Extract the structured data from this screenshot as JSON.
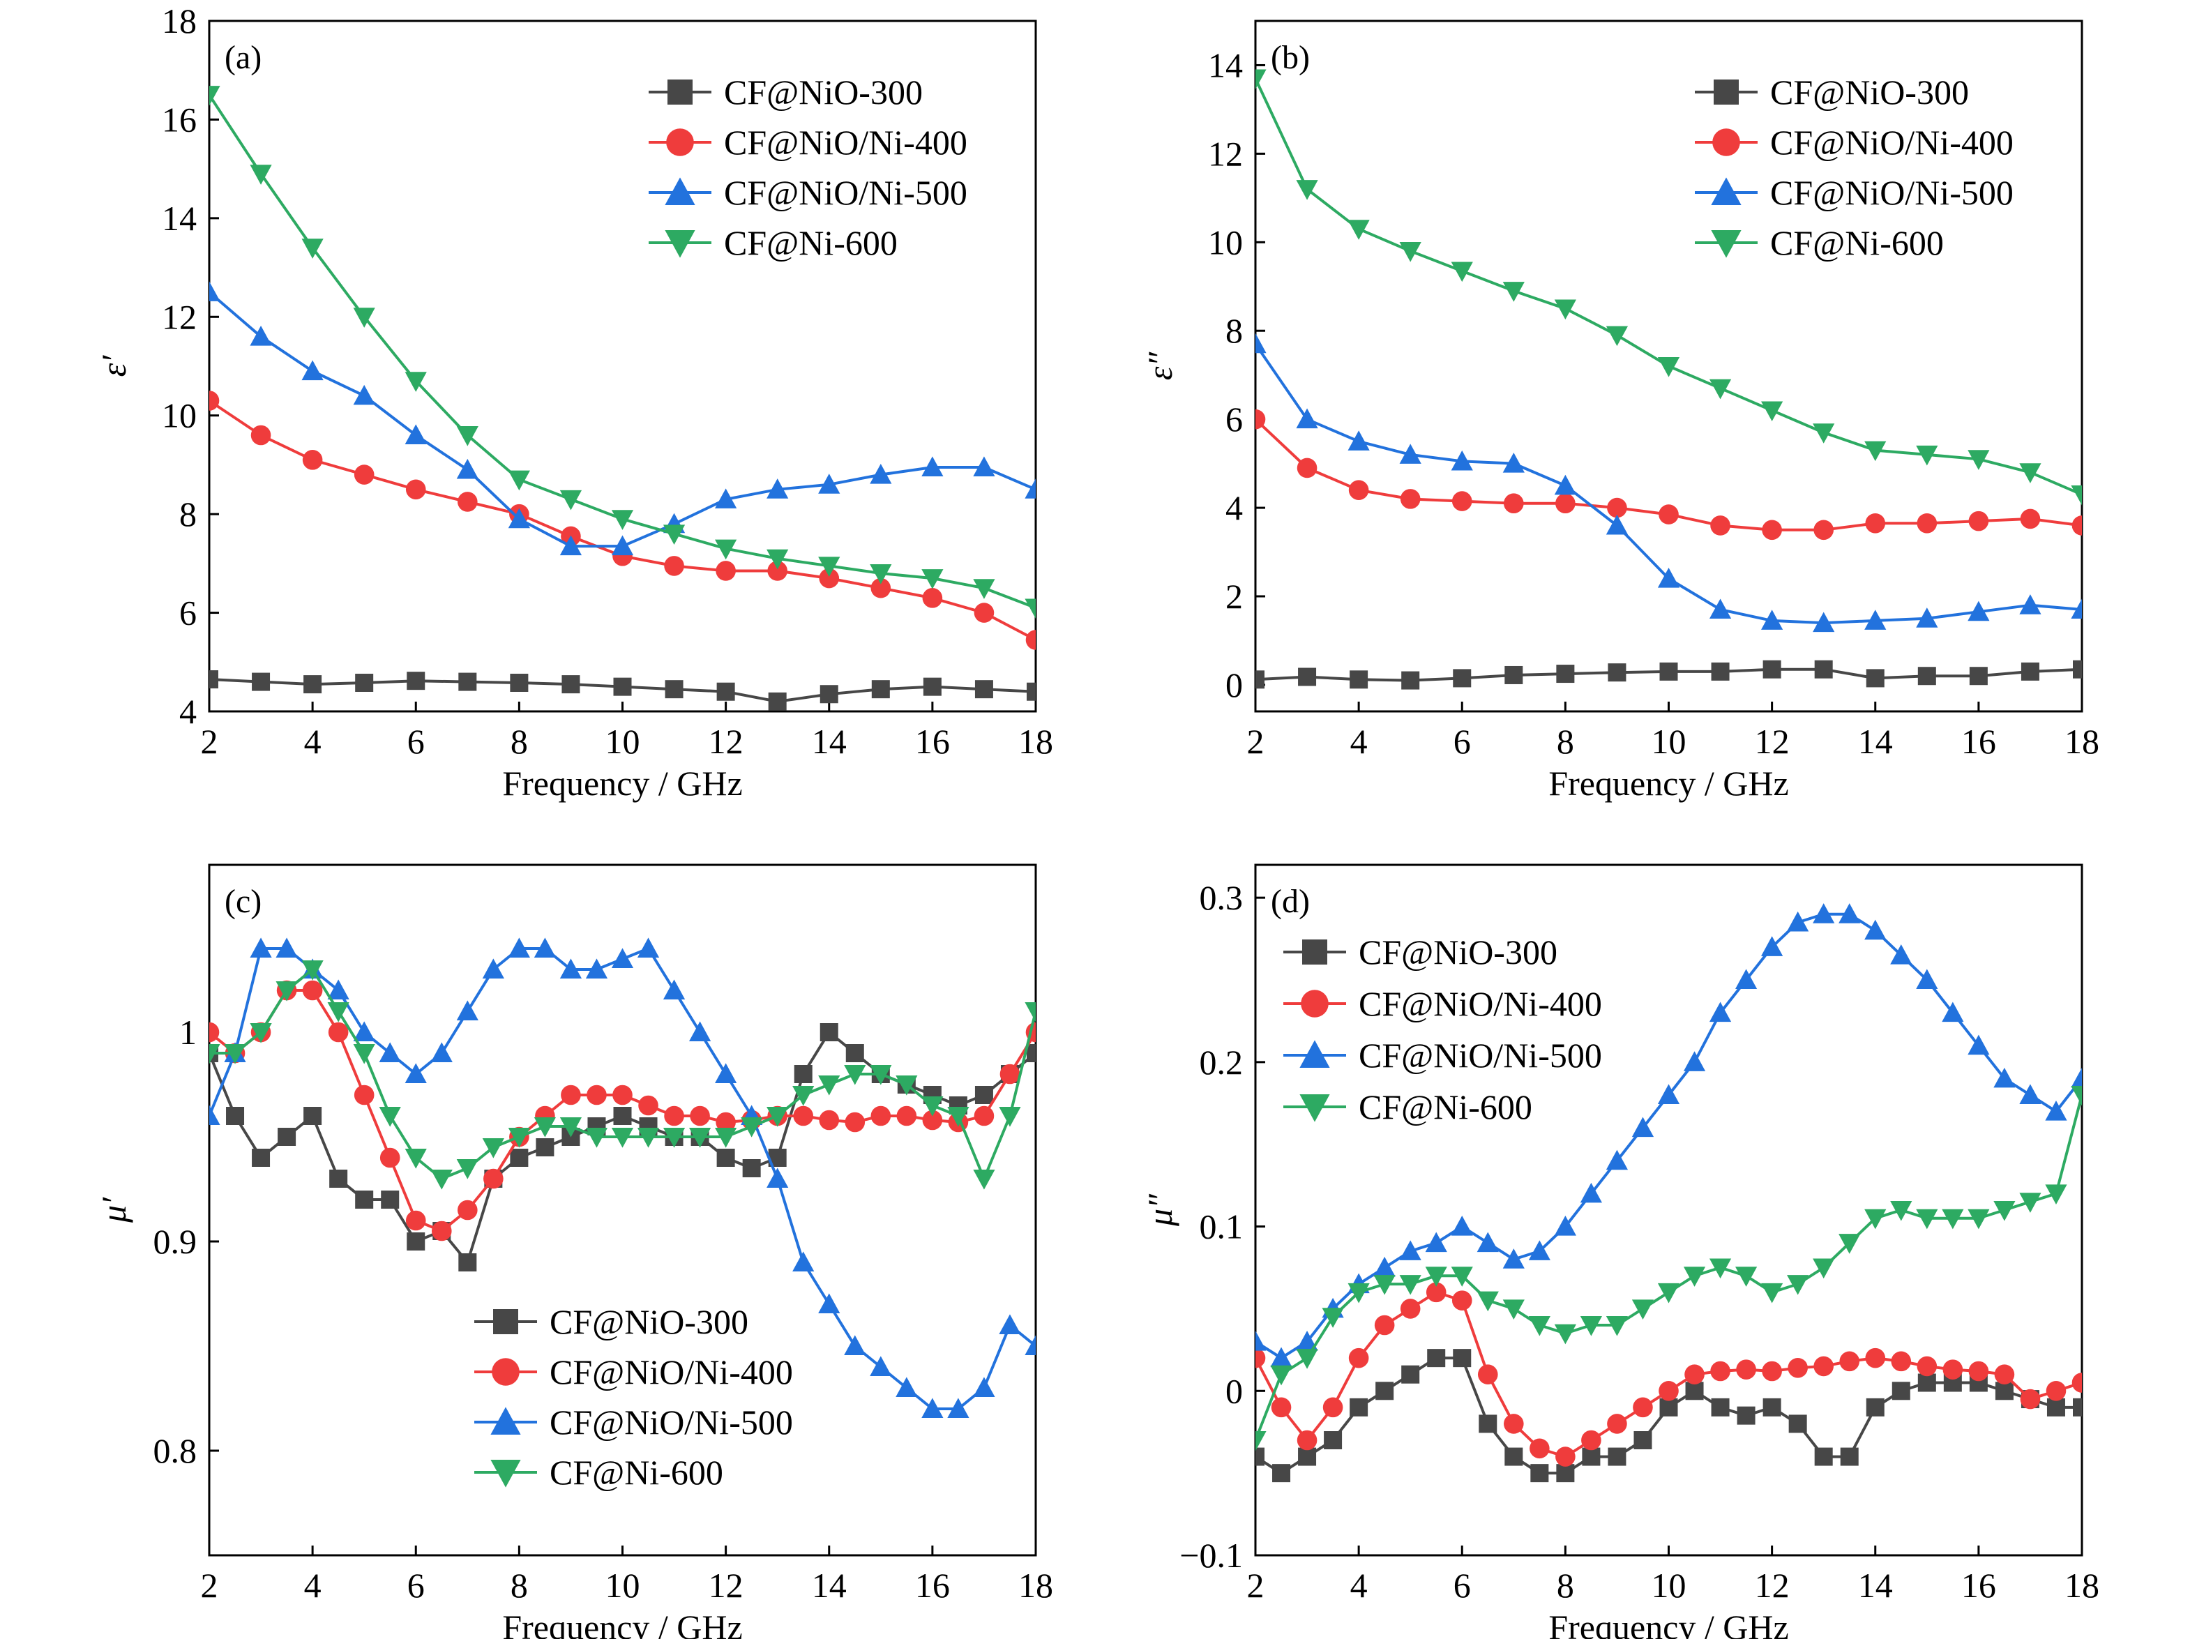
{
  "colors": {
    "CF@NiO-300": "#474747",
    "CF@NiO/Ni-400": "#ef3c3c",
    "CF@NiO/Ni-500": "#2272dd",
    "CF@Ni-600": "#2daa62"
  },
  "chart_data": [
    {
      "type": "line",
      "panel": "(a)",
      "xlabel": "Frequency / GHz",
      "ylabel": "ε′",
      "xlim": [
        2,
        18
      ],
      "ylim": [
        4,
        18
      ],
      "xticks": [
        2,
        4,
        6,
        8,
        10,
        12,
        14,
        16,
        18
      ],
      "yticks": [
        4,
        6,
        8,
        10,
        12,
        14,
        16,
        18
      ],
      "legend_position": "top-right",
      "x": [
        2,
        3,
        4,
        5,
        6,
        7,
        8,
        9,
        10,
        11,
        12,
        13,
        14,
        15,
        16,
        17,
        18
      ],
      "series": [
        {
          "name": "CF@NiO-300",
          "marker": "square",
          "values": [
            4.65,
            4.6,
            4.55,
            4.58,
            4.62,
            4.6,
            4.58,
            4.55,
            4.5,
            4.45,
            4.4,
            4.2,
            4.35,
            4.45,
            4.5,
            4.45,
            4.4
          ]
        },
        {
          "name": "CF@NiO/Ni-400",
          "marker": "circle",
          "values": [
            10.3,
            9.6,
            9.1,
            8.8,
            8.5,
            8.25,
            8.0,
            7.55,
            7.15,
            6.95,
            6.85,
            6.85,
            6.7,
            6.5,
            6.3,
            6.0,
            5.45
          ]
        },
        {
          "name": "CF@NiO/Ni-500",
          "marker": "triangle-up",
          "values": [
            12.5,
            11.6,
            10.9,
            10.4,
            9.6,
            8.9,
            7.9,
            7.35,
            7.35,
            7.8,
            8.3,
            8.5,
            8.6,
            8.8,
            8.95,
            8.95,
            8.5
          ]
        },
        {
          "name": "CF@Ni-600",
          "marker": "triangle-down",
          "values": [
            16.5,
            14.9,
            13.4,
            12.0,
            10.7,
            9.6,
            8.7,
            8.3,
            7.9,
            7.6,
            7.3,
            7.1,
            6.95,
            6.8,
            6.7,
            6.5,
            6.1
          ]
        }
      ]
    },
    {
      "type": "line",
      "panel": "(b)",
      "xlabel": "Frequency / GHz",
      "ylabel": "ε″",
      "xlim": [
        2,
        18
      ],
      "ylim": [
        -0.6,
        15
      ],
      "xticks": [
        2,
        4,
        6,
        8,
        10,
        12,
        14,
        16,
        18
      ],
      "yticks": [
        0,
        2,
        4,
        6,
        8,
        10,
        12,
        14
      ],
      "legend_position": "top-right",
      "x": [
        2,
        3,
        4,
        5,
        6,
        7,
        8,
        9,
        10,
        11,
        12,
        13,
        14,
        15,
        16,
        17,
        18
      ],
      "series": [
        {
          "name": "CF@NiO-300",
          "marker": "square",
          "values": [
            0.12,
            0.18,
            0.12,
            0.1,
            0.15,
            0.22,
            0.25,
            0.28,
            0.3,
            0.3,
            0.35,
            0.35,
            0.15,
            0.2,
            0.2,
            0.3,
            0.35
          ]
        },
        {
          "name": "CF@NiO/Ni-400",
          "marker": "circle",
          "values": [
            6.0,
            4.9,
            4.4,
            4.2,
            4.15,
            4.1,
            4.1,
            4.0,
            3.85,
            3.6,
            3.5,
            3.5,
            3.65,
            3.65,
            3.7,
            3.75,
            3.6
          ]
        },
        {
          "name": "CF@NiO/Ni-500",
          "marker": "triangle-up",
          "values": [
            7.7,
            6.0,
            5.5,
            5.2,
            5.05,
            5.0,
            4.5,
            3.6,
            2.4,
            1.7,
            1.45,
            1.4,
            1.45,
            1.5,
            1.65,
            1.8,
            1.7
          ]
        },
        {
          "name": "CF@Ni-600",
          "marker": "triangle-down",
          "values": [
            13.7,
            11.2,
            10.3,
            9.8,
            9.35,
            8.9,
            8.5,
            7.9,
            7.2,
            6.7,
            6.2,
            5.7,
            5.3,
            5.2,
            5.1,
            4.8,
            4.3
          ]
        }
      ]
    },
    {
      "type": "line",
      "panel": "(c)",
      "xlabel": "Frequency / GHz",
      "ylabel": "μ′",
      "xlim": [
        2,
        18
      ],
      "ylim": [
        0.75,
        1.08
      ],
      "xticks": [
        2,
        4,
        6,
        8,
        10,
        12,
        14,
        16,
        18
      ],
      "yticks": [
        0.8,
        0.9,
        1.0
      ],
      "legend_position": "bottom-center",
      "x": [
        2,
        2.5,
        3,
        3.5,
        4,
        4.5,
        5,
        5.5,
        6,
        6.5,
        7,
        7.5,
        8,
        8.5,
        9,
        9.5,
        10,
        10.5,
        11,
        11.5,
        12,
        12.5,
        13,
        13.5,
        14,
        14.5,
        15,
        15.5,
        16,
        16.5,
        17,
        17.5,
        18
      ],
      "series": [
        {
          "name": "CF@NiO-300",
          "marker": "square",
          "values": [
            0.99,
            0.96,
            0.94,
            0.95,
            0.96,
            0.93,
            0.92,
            0.92,
            0.9,
            0.905,
            0.89,
            0.93,
            0.94,
            0.945,
            0.95,
            0.955,
            0.96,
            0.955,
            0.95,
            0.95,
            0.94,
            0.935,
            0.94,
            0.98,
            1.0,
            0.99,
            0.98,
            0.975,
            0.97,
            0.965,
            0.97,
            0.98,
            0.99
          ]
        },
        {
          "name": "CF@NiO/Ni-400",
          "marker": "circle",
          "values": [
            1.0,
            0.99,
            1.0,
            1.02,
            1.02,
            1.0,
            0.97,
            0.94,
            0.91,
            0.905,
            0.915,
            0.93,
            0.95,
            0.96,
            0.97,
            0.97,
            0.97,
            0.965,
            0.96,
            0.96,
            0.957,
            0.958,
            0.96,
            0.96,
            0.958,
            0.957,
            0.96,
            0.96,
            0.958,
            0.957,
            0.96,
            0.98,
            1.0
          ]
        },
        {
          "name": "CF@NiO/Ni-500",
          "marker": "triangle-up",
          "values": [
            0.96,
            0.99,
            1.04,
            1.04,
            1.03,
            1.02,
            1.0,
            0.99,
            0.98,
            0.99,
            1.01,
            1.03,
            1.04,
            1.04,
            1.03,
            1.03,
            1.035,
            1.04,
            1.02,
            1.0,
            0.98,
            0.96,
            0.93,
            0.89,
            0.87,
            0.85,
            0.84,
            0.83,
            0.82,
            0.82,
            0.83,
            0.86,
            0.85
          ]
        },
        {
          "name": "CF@Ni-600",
          "marker": "triangle-down",
          "values": [
            0.99,
            0.99,
            1.0,
            1.02,
            1.03,
            1.01,
            0.99,
            0.96,
            0.94,
            0.93,
            0.935,
            0.945,
            0.95,
            0.955,
            0.955,
            0.95,
            0.95,
            0.95,
            0.95,
            0.95,
            0.95,
            0.955,
            0.96,
            0.97,
            0.975,
            0.98,
            0.98,
            0.975,
            0.965,
            0.96,
            0.93,
            0.96,
            1.01
          ]
        }
      ]
    },
    {
      "type": "line",
      "panel": "(d)",
      "xlabel": "Frequency / GHz",
      "ylabel": "μ″",
      "xlim": [
        2,
        18
      ],
      "ylim": [
        -0.1,
        0.32
      ],
      "xticks": [
        2,
        4,
        6,
        8,
        10,
        12,
        14,
        16,
        18
      ],
      "yticks": [
        -0.1,
        0.0,
        0.1,
        0.2,
        0.3
      ],
      "ytick_labels": [
        "−0.1",
        "0",
        "0.1",
        "0.2",
        "0.3"
      ],
      "legend_position": "top-left",
      "x": [
        2,
        2.5,
        3,
        3.5,
        4,
        4.5,
        5,
        5.5,
        6,
        6.5,
        7,
        7.5,
        8,
        8.5,
        9,
        9.5,
        10,
        10.5,
        11,
        11.5,
        12,
        12.5,
        13,
        13.5,
        14,
        14.5,
        15,
        15.5,
        16,
        16.5,
        17,
        17.5,
        18
      ],
      "series": [
        {
          "name": "CF@NiO-300",
          "marker": "square",
          "values": [
            -0.04,
            -0.05,
            -0.04,
            -0.03,
            -0.01,
            0.0,
            0.01,
            0.02,
            0.02,
            -0.02,
            -0.04,
            -0.05,
            -0.05,
            -0.04,
            -0.04,
            -0.03,
            -0.01,
            0.0,
            -0.01,
            -0.015,
            -0.01,
            -0.02,
            -0.04,
            -0.04,
            -0.01,
            0.0,
            0.005,
            0.005,
            0.005,
            0.0,
            -0.005,
            -0.01,
            -0.01
          ]
        },
        {
          "name": "CF@NiO/Ni-400",
          "marker": "circle",
          "values": [
            0.02,
            -0.01,
            -0.03,
            -0.01,
            0.02,
            0.04,
            0.05,
            0.06,
            0.055,
            0.01,
            -0.02,
            -0.035,
            -0.04,
            -0.03,
            -0.02,
            -0.01,
            0.0,
            0.01,
            0.012,
            0.013,
            0.012,
            0.014,
            0.015,
            0.018,
            0.02,
            0.018,
            0.015,
            0.013,
            0.012,
            0.01,
            -0.005,
            0.0,
            0.005
          ]
        },
        {
          "name": "CF@NiO/Ni-500",
          "marker": "triangle-up",
          "values": [
            0.03,
            0.02,
            0.03,
            0.05,
            0.065,
            0.075,
            0.085,
            0.09,
            0.1,
            0.09,
            0.08,
            0.085,
            0.1,
            0.12,
            0.14,
            0.16,
            0.18,
            0.2,
            0.23,
            0.25,
            0.27,
            0.285,
            0.29,
            0.29,
            0.28,
            0.265,
            0.25,
            0.23,
            0.21,
            0.19,
            0.18,
            0.17,
            0.19
          ]
        },
        {
          "name": "CF@Ni-600",
          "marker": "triangle-down",
          "values": [
            -0.03,
            0.01,
            0.02,
            0.045,
            0.06,
            0.065,
            0.065,
            0.07,
            0.07,
            0.055,
            0.05,
            0.04,
            0.035,
            0.04,
            0.04,
            0.05,
            0.06,
            0.07,
            0.075,
            0.07,
            0.06,
            0.065,
            0.075,
            0.09,
            0.105,
            0.11,
            0.105,
            0.105,
            0.105,
            0.11,
            0.115,
            0.12,
            0.18
          ]
        }
      ]
    }
  ]
}
